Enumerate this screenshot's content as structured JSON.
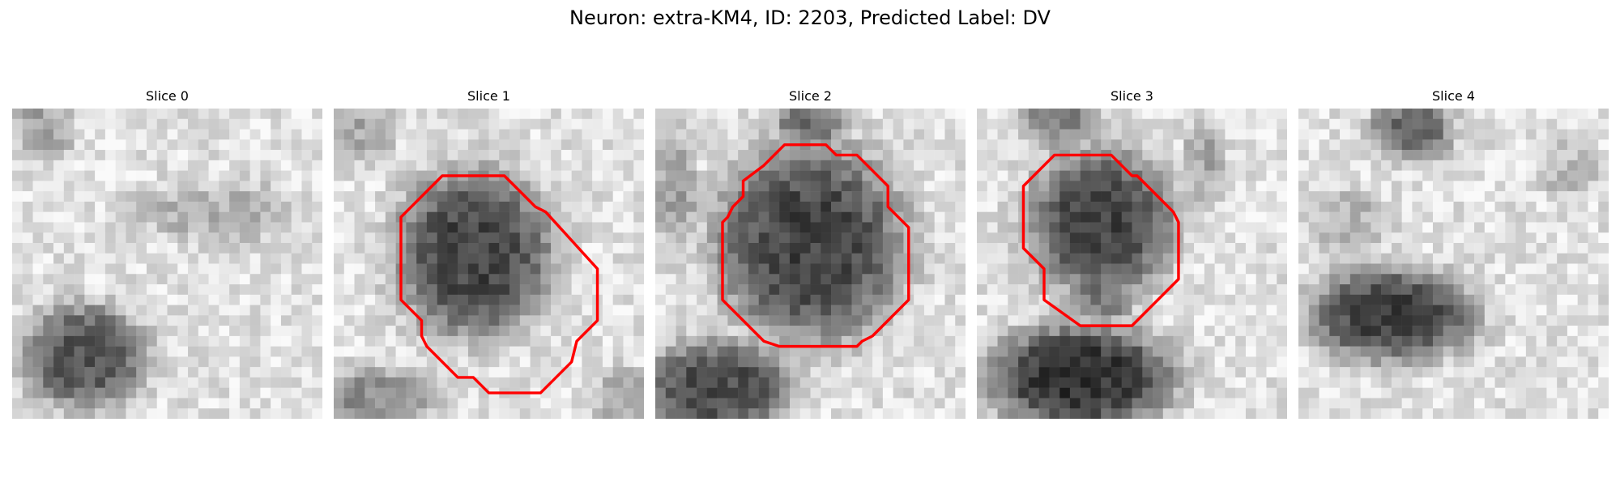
{
  "figure": {
    "title": "Neuron: extra-KM4, ID: 2203, Predicted Label: DV",
    "contour_color": "#ff0000"
  },
  "slices": [
    {
      "title": "Slice 0",
      "has_contour": false,
      "contour": []
    },
    {
      "title": "Slice 1",
      "has_contour": true,
      "contour": [
        [
          12.5,
          6.5
        ],
        [
          16.5,
          6.5
        ],
        [
          18.5,
          8.5
        ],
        [
          19.5,
          9.5
        ],
        [
          20.5,
          10.0
        ],
        [
          25.5,
          15.5
        ],
        [
          25.5,
          20.5
        ],
        [
          23.5,
          22.5
        ],
        [
          23.0,
          24.5
        ],
        [
          20.0,
          27.5
        ],
        [
          15.0,
          27.5
        ],
        [
          13.5,
          26.0
        ],
        [
          12.0,
          26.0
        ],
        [
          9.0,
          23.0
        ],
        [
          8.5,
          22.0
        ],
        [
          8.5,
          20.5
        ],
        [
          7.5,
          19.5
        ],
        [
          6.5,
          18.5
        ],
        [
          6.5,
          10.5
        ],
        [
          10.5,
          6.5
        ]
      ]
    },
    {
      "title": "Slice 2",
      "has_contour": true,
      "contour": [
        [
          12.5,
          3.5
        ],
        [
          16.5,
          3.5
        ],
        [
          17.5,
          4.5
        ],
        [
          19.5,
          4.5
        ],
        [
          20.5,
          5.5
        ],
        [
          22.5,
          7.5
        ],
        [
          22.5,
          9.5
        ],
        [
          24.5,
          11.5
        ],
        [
          24.5,
          18.5
        ],
        [
          21.5,
          21.5
        ],
        [
          21.0,
          22.0
        ],
        [
          20.0,
          22.5
        ],
        [
          19.5,
          23.0
        ],
        [
          12.0,
          23.0
        ],
        [
          10.5,
          22.5
        ],
        [
          7.5,
          19.5
        ],
        [
          6.5,
          18.5
        ],
        [
          6.5,
          11.0
        ],
        [
          7.0,
          10.5
        ],
        [
          7.5,
          9.5
        ],
        [
          8.5,
          8.5
        ],
        [
          8.5,
          7.0
        ],
        [
          10.5,
          5.5
        ],
        [
          12.0,
          4.0
        ]
      ]
    },
    {
      "title": "Slice 3",
      "has_contour": true,
      "contour": [
        [
          10.5,
          4.5
        ],
        [
          13.0,
          4.5
        ],
        [
          14.5,
          6.0
        ],
        [
          15.0,
          6.5
        ],
        [
          15.5,
          6.5
        ],
        [
          16.5,
          7.5
        ],
        [
          19.0,
          10.0
        ],
        [
          19.5,
          11.0
        ],
        [
          19.5,
          16.5
        ],
        [
          15.0,
          21.0
        ],
        [
          10.0,
          21.0
        ],
        [
          6.5,
          18.5
        ],
        [
          6.5,
          15.5
        ],
        [
          5.5,
          14.5
        ],
        [
          4.5,
          13.5
        ],
        [
          4.5,
          7.5
        ],
        [
          7.5,
          4.5
        ]
      ]
    },
    {
      "title": "Slice 4",
      "has_contour": false,
      "contour": []
    }
  ]
}
